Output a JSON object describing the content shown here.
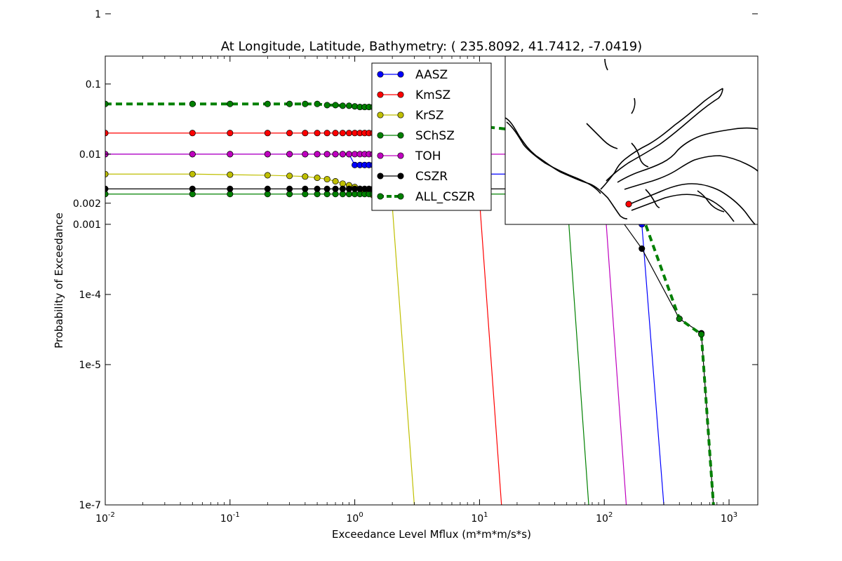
{
  "chart_data": {
    "type": "line",
    "title": "At Longitude, Latitude, Bathymetry:  ( 235.8092,  41.7412,  -7.0419)",
    "xlabel": "Exceedance Level Mflux (m*m*m/s*s)",
    "ylabel": "Probability of Exceedance",
    "xscale": "log",
    "yscale": "log",
    "xlim": [
      0.01,
      1700
    ],
    "ylim": [
      1e-07,
      0.25
    ],
    "x_ticks": [
      {
        "value": 0.01,
        "base": "10",
        "exp": "-2"
      },
      {
        "value": 0.1,
        "base": "10",
        "exp": "-1"
      },
      {
        "value": 1,
        "base": "10",
        "exp": "0"
      },
      {
        "value": 10,
        "base": "10",
        "exp": "1"
      },
      {
        "value": 100,
        "base": "10",
        "exp": "2"
      },
      {
        "value": 1000,
        "base": "10",
        "exp": "3"
      }
    ],
    "y_ticks": [
      {
        "value": 1,
        "label": "1"
      },
      {
        "value": 0.1,
        "label": "0.1"
      },
      {
        "value": 0.01,
        "label": "0.01"
      },
      {
        "value": 0.002,
        "label": "0.002"
      },
      {
        "value": 0.001,
        "label": "0.001"
      },
      {
        "value": 0.0001,
        "label": "1e-4"
      },
      {
        "value": 1e-05,
        "label": "1e-5"
      },
      {
        "value": 1e-07,
        "label": "1e-7"
      }
    ],
    "grid": false,
    "legend_position": "top-center",
    "series": [
      {
        "name": "AASZ",
        "color": "#0000ff",
        "dashed": false,
        "markers": true,
        "x": [
          0.01,
          0.05,
          0.1,
          0.2,
          0.3,
          0.4,
          0.5,
          0.6,
          0.7,
          0.8,
          0.9,
          1.0,
          1.1,
          1.2,
          1.3,
          1.4,
          1.5,
          1.6,
          1.7,
          1.8,
          1.9,
          2.0,
          4,
          6,
          8,
          10,
          20,
          50,
          100,
          200,
          300
        ],
        "y": [
          0.01,
          0.01,
          0.01,
          0.01,
          0.01,
          0.01,
          0.01,
          0.01,
          0.01,
          0.01,
          0.01,
          0.007,
          0.007,
          0.007,
          0.007,
          0.007,
          0.007,
          0.007,
          0.007,
          0.007,
          0.007,
          0.007,
          0.0052,
          0.0052,
          0.0052,
          0.0052,
          0.0052,
          0.00135,
          0.0013,
          0.001,
          1e-07
        ]
      },
      {
        "name": "KmSZ",
        "color": "#ff0000",
        "dashed": false,
        "markers": true,
        "x": [
          0.01,
          0.05,
          0.1,
          0.2,
          0.3,
          0.4,
          0.5,
          0.6,
          0.7,
          0.8,
          0.9,
          1.0,
          1.1,
          1.2,
          1.3,
          1.4,
          1.5,
          1.6,
          1.7,
          1.8,
          1.9,
          2.0,
          4,
          6,
          8,
          10,
          15
        ],
        "y": [
          0.02,
          0.02,
          0.02,
          0.02,
          0.02,
          0.02,
          0.02,
          0.02,
          0.02,
          0.02,
          0.02,
          0.02,
          0.02,
          0.02,
          0.02,
          0.02,
          0.02,
          0.02,
          0.02,
          0.02,
          0.02,
          0.02,
          0.02,
          0.02,
          0.017,
          0.0022,
          1e-07
        ]
      },
      {
        "name": "KrSZ",
        "color": "#bfbf00",
        "dashed": false,
        "markers": true,
        "x": [
          0.01,
          0.05,
          0.1,
          0.2,
          0.3,
          0.4,
          0.5,
          0.6,
          0.7,
          0.8,
          0.9,
          1.0,
          1.1,
          1.2,
          1.3,
          1.4,
          1.5,
          1.6,
          1.7,
          1.8,
          1.9,
          2.0,
          3.0
        ],
        "y": [
          0.0052,
          0.0052,
          0.0051,
          0.005,
          0.0049,
          0.0048,
          0.0046,
          0.0044,
          0.0041,
          0.0038,
          0.0036,
          0.0034,
          0.0032,
          0.003,
          0.0028,
          0.0026,
          0.0024,
          0.0022,
          0.0021,
          0.002,
          0.0019,
          0.0018,
          1e-07
        ]
      },
      {
        "name": "SChSZ",
        "color": "#008000",
        "dashed": false,
        "markers": true,
        "x": [
          0.01,
          0.05,
          0.1,
          0.2,
          0.3,
          0.4,
          0.5,
          0.6,
          0.7,
          0.8,
          0.9,
          1.0,
          1.1,
          1.2,
          1.3,
          1.4,
          1.5,
          1.6,
          1.7,
          1.8,
          1.9,
          2.0,
          4,
          6,
          8,
          10,
          20,
          50,
          75
        ],
        "y": [
          0.0027,
          0.0027,
          0.0027,
          0.0027,
          0.0027,
          0.0027,
          0.0027,
          0.0027,
          0.0027,
          0.0027,
          0.0027,
          0.0027,
          0.0027,
          0.0027,
          0.0027,
          0.0027,
          0.0027,
          0.0027,
          0.0027,
          0.0027,
          0.0027,
          0.0027,
          0.0027,
          0.0027,
          0.0027,
          0.0027,
          0.0027,
          0.0027,
          1e-07
        ]
      },
      {
        "name": "TOH",
        "color": "#bf00bf",
        "dashed": false,
        "markers": true,
        "x": [
          0.01,
          0.05,
          0.1,
          0.2,
          0.3,
          0.4,
          0.5,
          0.6,
          0.7,
          0.8,
          0.9,
          1.0,
          1.1,
          1.2,
          1.3,
          1.4,
          1.5,
          1.6,
          1.7,
          1.8,
          1.9,
          2.0,
          4,
          6,
          8,
          10,
          20,
          50,
          100,
          150
        ],
        "y": [
          0.01,
          0.01,
          0.01,
          0.01,
          0.01,
          0.01,
          0.01,
          0.01,
          0.01,
          0.01,
          0.01,
          0.01,
          0.01,
          0.01,
          0.01,
          0.01,
          0.01,
          0.01,
          0.01,
          0.01,
          0.01,
          0.01,
          0.01,
          0.01,
          0.01,
          0.01,
          0.01,
          0.0097,
          0.0025,
          1e-07
        ]
      },
      {
        "name": "CSZR",
        "color": "#000000",
        "dashed": false,
        "markers": true,
        "x": [
          0.01,
          0.05,
          0.1,
          0.2,
          0.3,
          0.4,
          0.5,
          0.6,
          0.7,
          0.8,
          0.9,
          1.0,
          1.1,
          1.2,
          1.3,
          1.4,
          1.5,
          1.6,
          1.7,
          1.8,
          1.9,
          2.0,
          4,
          6,
          8,
          10,
          20,
          50,
          100,
          200,
          400,
          600,
          750
        ],
        "y": [
          0.0032,
          0.0032,
          0.0032,
          0.0032,
          0.0032,
          0.0032,
          0.0032,
          0.0032,
          0.0032,
          0.0032,
          0.0032,
          0.0032,
          0.0032,
          0.0032,
          0.0032,
          0.0032,
          0.0032,
          0.0032,
          0.0032,
          0.0032,
          0.0032,
          0.0032,
          0.0032,
          0.0032,
          0.0032,
          0.0032,
          0.0032,
          0.0032,
          0.0025,
          0.00045,
          4.5e-05,
          2.8e-05,
          1e-07
        ]
      },
      {
        "name": "ALL_CSZR",
        "color": "#008000",
        "dashed": true,
        "markers": true,
        "x": [
          0.01,
          0.05,
          0.1,
          0.2,
          0.3,
          0.4,
          0.5,
          0.6,
          0.7,
          0.8,
          0.9,
          1.0,
          1.1,
          1.2,
          1.3,
          1.4,
          1.5,
          1.6,
          1.7,
          1.8,
          1.9,
          2.0,
          4,
          6,
          8,
          10,
          20,
          50,
          100,
          200,
          400,
          600,
          750
        ],
        "y": [
          0.052,
          0.052,
          0.052,
          0.052,
          0.052,
          0.052,
          0.052,
          0.05,
          0.05,
          0.049,
          0.049,
          0.048,
          0.047,
          0.047,
          0.047,
          0.047,
          0.046,
          0.046,
          0.046,
          0.045,
          0.045,
          0.045,
          0.042,
          0.042,
          0.038,
          0.025,
          0.022,
          0.018,
          0.0072,
          0.0014,
          4.5e-05,
          2.7e-05,
          1e-07
        ]
      }
    ]
  },
  "inset_map": {
    "description_icon": "coastline-map",
    "marker_color": "#ff0000"
  }
}
